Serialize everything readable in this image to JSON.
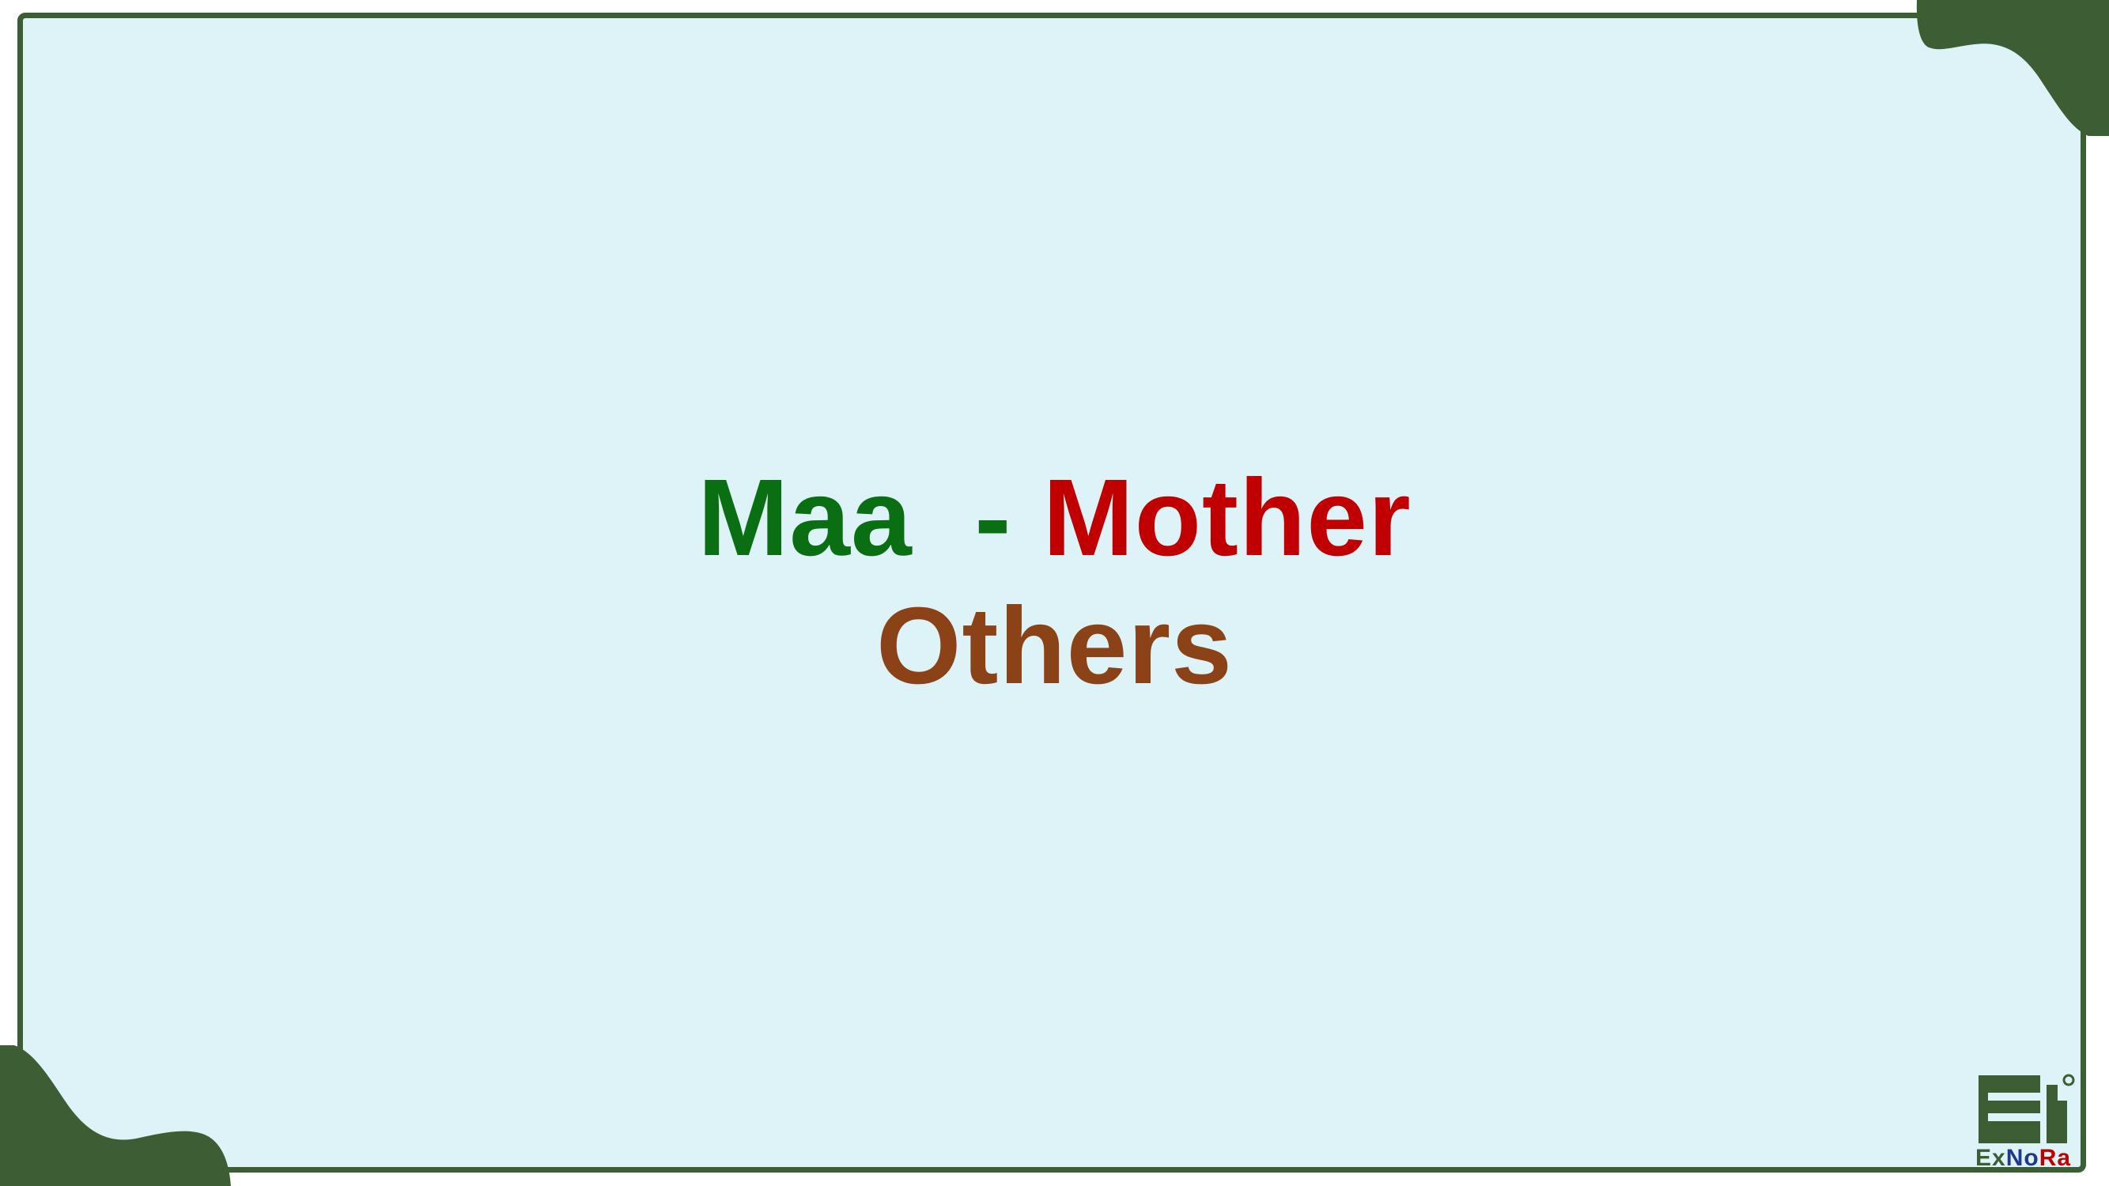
{
  "slide": {
    "word1": "Maa",
    "separator": "  - ",
    "word2": "Mother",
    "line2": "Others"
  },
  "logo": {
    "text_part1": "Ex",
    "text_part2": "No",
    "text_part3": "Ra"
  },
  "colors": {
    "background": "#ddf3f7",
    "frame": "#3d5e35",
    "word1": "#0a6e12",
    "separator": "#0a6e12",
    "word2": "#c00000",
    "line2": "#8b4216",
    "logo_green": "#3d5e35",
    "logo_blue": "#1f3a8a",
    "logo_red": "#c00000"
  }
}
